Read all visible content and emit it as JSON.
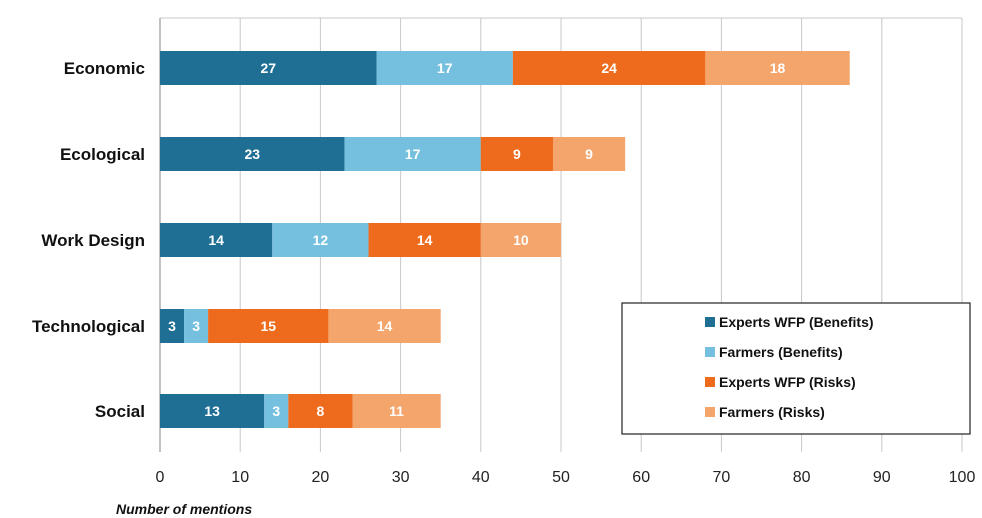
{
  "chart_data": {
    "type": "bar",
    "orientation": "horizontal",
    "stacked": true,
    "categories": [
      "Economic",
      "Ecological",
      "Work Design",
      "Technological",
      "Social"
    ],
    "series": [
      {
        "name": "Experts WFP (Benefits)",
        "color": "#1f6e93",
        "values": [
          27,
          23,
          14,
          3,
          13
        ]
      },
      {
        "name": "Farmers (Benefits)",
        "color": "#74c0de",
        "values": [
          17,
          17,
          12,
          3,
          3
        ]
      },
      {
        "name": "Experts WFP (Risks)",
        "color": "#ee6a1c",
        "values": [
          24,
          9,
          14,
          15,
          8
        ]
      },
      {
        "name": "Farmers (Risks)",
        "color": "#f4a56b",
        "values": [
          18,
          9,
          10,
          14,
          11
        ]
      }
    ],
    "xlabel": "Number of mentions",
    "xlim": [
      0,
      100
    ],
    "xticks": [
      0,
      10,
      20,
      30,
      40,
      50,
      60,
      70,
      80,
      90,
      100
    ],
    "grid": true,
    "legend_position": "bottom-right"
  }
}
